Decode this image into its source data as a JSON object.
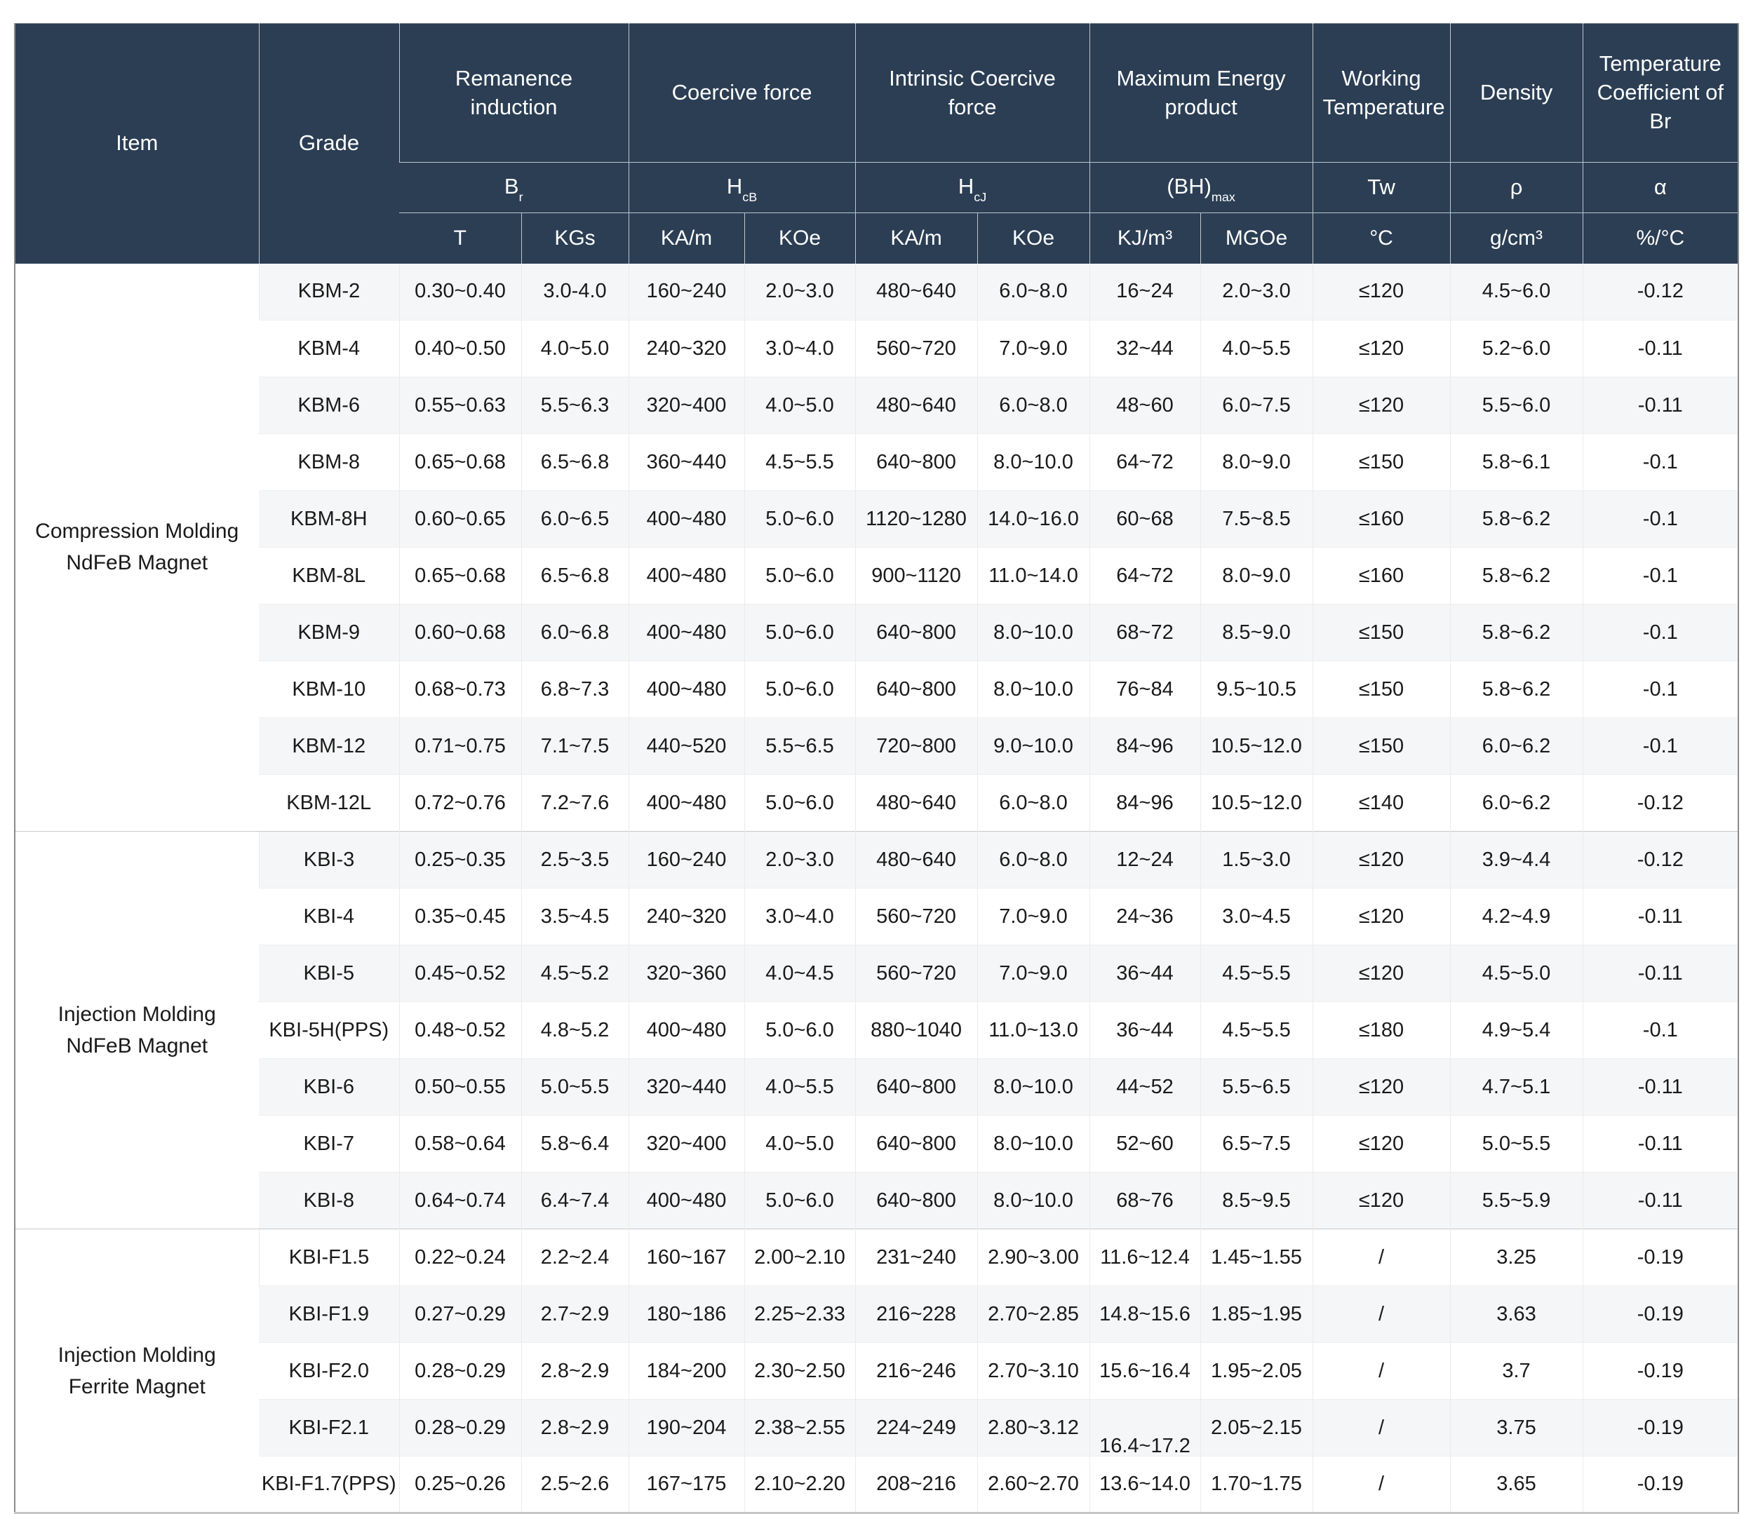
{
  "colors": {
    "header_bg": "#2b3e54",
    "header_text": "#ffffff",
    "stripe": "#f5f6f7",
    "body_text": "#1a1a1a"
  },
  "table": {
    "header": {
      "item": "Item",
      "grade": "Grade",
      "groups": [
        {
          "label": "Remanence induction",
          "symbol": {
            "base": "B",
            "sub": "r"
          },
          "units": [
            "T",
            "KGs"
          ]
        },
        {
          "label": "Coercive force",
          "symbol": {
            "base": "H",
            "sub": "cB"
          },
          "units": [
            "KA/m",
            "KOe"
          ]
        },
        {
          "label": "Intrinsic Coercive force",
          "symbol": {
            "base": "H",
            "sub": "cJ"
          },
          "units": [
            "KA/m",
            "KOe"
          ]
        },
        {
          "label": "Maximum Energy product",
          "symbol": {
            "base": "(BH)",
            "sub": "max"
          },
          "units": [
            "KJ/m³",
            "MGOe"
          ]
        },
        {
          "label": "Working Temperature",
          "symbol": {
            "base": "Tw",
            "sub": ""
          },
          "units": [
            "°C"
          ]
        },
        {
          "label": "Density",
          "symbol": {
            "base": "ρ",
            "sub": ""
          },
          "units": [
            "g/cm³"
          ]
        },
        {
          "label": "Temperature Coefficient of Br",
          "symbol": {
            "base": "α",
            "sub": ""
          },
          "units": [
            "%/°C"
          ]
        }
      ]
    },
    "groups": [
      {
        "item": "Compression Molding NdFeB Magnet",
        "rows": [
          {
            "grade": "KBM-2",
            "values": [
              "0.30~0.40",
              "3.0-4.0",
              "160~240",
              "2.0~3.0",
              "480~640",
              "6.0~8.0",
              "16~24",
              "2.0~3.0",
              "≤120",
              "4.5~6.0",
              "-0.12"
            ]
          },
          {
            "grade": "KBM-4",
            "values": [
              "0.40~0.50",
              "4.0~5.0",
              "240~320",
              "3.0~4.0",
              "560~720",
              "7.0~9.0",
              "32~44",
              "4.0~5.5",
              "≤120",
              "5.2~6.0",
              "-0.11"
            ]
          },
          {
            "grade": "KBM-6",
            "values": [
              "0.55~0.63",
              "5.5~6.3",
              "320~400",
              "4.0~5.0",
              "480~640",
              "6.0~8.0",
              "48~60",
              "6.0~7.5",
              "≤120",
              "5.5~6.0",
              "-0.11"
            ]
          },
          {
            "grade": "KBM-8",
            "values": [
              "0.65~0.68",
              "6.5~6.8",
              "360~440",
              "4.5~5.5",
              "640~800",
              "8.0~10.0",
              "64~72",
              "8.0~9.0",
              "≤150",
              "5.8~6.1",
              "-0.1"
            ]
          },
          {
            "grade": "KBM-8H",
            "values": [
              "0.60~0.65",
              "6.0~6.5",
              "400~480",
              "5.0~6.0",
              "1120~1280",
              "14.0~16.0",
              "60~68",
              "7.5~8.5",
              "≤160",
              "5.8~6.2",
              "-0.1"
            ]
          },
          {
            "grade": "KBM-8L",
            "values": [
              "0.65~0.68",
              "6.5~6.8",
              "400~480",
              "5.0~6.0",
              "900~1120",
              "11.0~14.0",
              "64~72",
              "8.0~9.0",
              "≤160",
              "5.8~6.2",
              "-0.1"
            ]
          },
          {
            "grade": "KBM-9",
            "values": [
              "0.60~0.68",
              "6.0~6.8",
              "400~480",
              "5.0~6.0",
              "640~800",
              "8.0~10.0",
              "68~72",
              "8.5~9.0",
              "≤150",
              "5.8~6.2",
              "-0.1"
            ]
          },
          {
            "grade": "KBM-10",
            "values": [
              "0.68~0.73",
              "6.8~7.3",
              "400~480",
              "5.0~6.0",
              "640~800",
              "8.0~10.0",
              "76~84",
              "9.5~10.5",
              "≤150",
              "5.8~6.2",
              "-0.1"
            ]
          },
          {
            "grade": "KBM-12",
            "values": [
              "0.71~0.75",
              "7.1~7.5",
              "440~520",
              "5.5~6.5",
              "720~800",
              "9.0~10.0",
              "84~96",
              "10.5~12.0",
              "≤150",
              "6.0~6.2",
              "-0.1"
            ]
          },
          {
            "grade": "KBM-12L",
            "values": [
              "0.72~0.76",
              "7.2~7.6",
              "400~480",
              "5.0~6.0",
              "480~640",
              "6.0~8.0",
              "84~96",
              "10.5~12.0",
              "≤140",
              "6.0~6.2",
              "-0.12"
            ]
          }
        ]
      },
      {
        "item": "Injection Molding NdFeB Magnet",
        "rows": [
          {
            "grade": "KBI-3",
            "values": [
              "0.25~0.35",
              "2.5~3.5",
              "160~240",
              "2.0~3.0",
              "480~640",
              "6.0~8.0",
              "12~24",
              "1.5~3.0",
              "≤120",
              "3.9~4.4",
              "-0.12"
            ]
          },
          {
            "grade": "KBI-4",
            "values": [
              "0.35~0.45",
              "3.5~4.5",
              "240~320",
              "3.0~4.0",
              "560~720",
              "7.0~9.0",
              "24~36",
              "3.0~4.5",
              "≤120",
              "4.2~4.9",
              "-0.11"
            ]
          },
          {
            "grade": "KBI-5",
            "values": [
              "0.45~0.52",
              "4.5~5.2",
              "320~360",
              "4.0~4.5",
              "560~720",
              "7.0~9.0",
              "36~44",
              "4.5~5.5",
              "≤120",
              "4.5~5.0",
              "-0.11"
            ]
          },
          {
            "grade": "KBI-5H(PPS)",
            "values": [
              "0.48~0.52",
              "4.8~5.2",
              "400~480",
              "5.0~6.0",
              "880~1040",
              "11.0~13.0",
              "36~44",
              "4.5~5.5",
              "≤180",
              "4.9~5.4",
              "-0.1"
            ]
          },
          {
            "grade": "KBI-6",
            "values": [
              "0.50~0.55",
              "5.0~5.5",
              "320~440",
              "4.0~5.5",
              "640~800",
              "8.0~10.0",
              "44~52",
              "5.5~6.5",
              "≤120",
              "4.7~5.1",
              "-0.11"
            ]
          },
          {
            "grade": "KBI-7",
            "values": [
              "0.58~0.64",
              "5.8~6.4",
              "320~400",
              "4.0~5.0",
              "640~800",
              "8.0~10.0",
              "52~60",
              "6.5~7.5",
              "≤120",
              "5.0~5.5",
              "-0.11"
            ]
          },
          {
            "grade": "KBI-8",
            "values": [
              "0.64~0.74",
              "6.4~7.4",
              "400~480",
              "5.0~6.0",
              "640~800",
              "8.0~10.0",
              "68~76",
              "8.5~9.5",
              "≤120",
              "5.5~5.9",
              "-0.11"
            ]
          }
        ]
      },
      {
        "item": "Injection Molding Ferrite Magnet",
        "rows": [
          {
            "grade": "KBI-F1.5",
            "values": [
              "0.22~0.24",
              "2.2~2.4",
              "160~167",
              "2.00~2.10",
              "231~240",
              "2.90~3.00",
              "11.6~12.4",
              "1.45~1.55",
              "/",
              "3.25",
              "-0.19"
            ]
          },
          {
            "grade": "KBI-F1.9",
            "values": [
              "0.27~0.29",
              "2.7~2.9",
              "180~186",
              "2.25~2.33",
              "216~228",
              "2.70~2.85",
              "14.8~15.6",
              "1.85~1.95",
              "/",
              "3.63",
              "-0.19"
            ]
          },
          {
            "grade": "KBI-F2.0",
            "values": [
              "0.28~0.29",
              "2.8~2.9",
              "184~200",
              "2.30~2.50",
              "216~246",
              "2.70~3.10",
              "15.6~16.4",
              "1.95~2.05",
              "/",
              "3.7",
              "-0.19"
            ]
          },
          {
            "grade": "KBI-F2.1",
            "values": [
              "0.28~0.29",
              "2.8~2.9",
              "190~204",
              "2.38~2.55",
              "224~249",
              "2.80~3.12",
              "16.4~17.2",
              "2.05~2.15",
              "/",
              "3.75",
              "-0.19"
            ]
          },
          {
            "grade": "KBI-F1.7(PPS)",
            "values": [
              "0.25~0.26",
              "2.5~2.6",
              "167~175",
              "2.10~2.20",
              "208~216",
              "2.60~2.70",
              "13.6~14.0",
              "1.70~1.75",
              "/",
              "3.65",
              "-0.19"
            ]
          }
        ]
      }
    ]
  }
}
